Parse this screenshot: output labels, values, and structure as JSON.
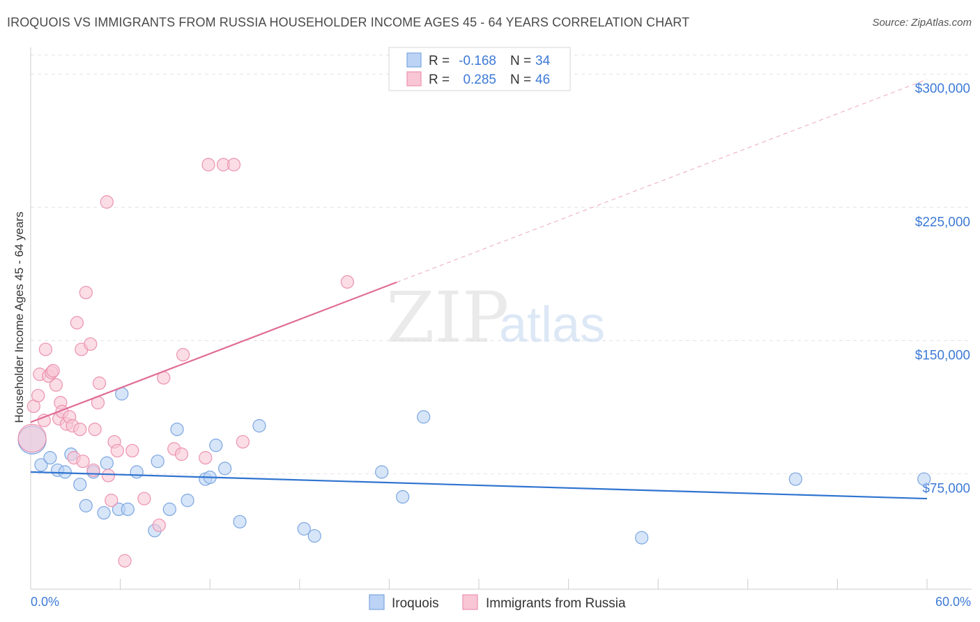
{
  "title": "IROQUOIS VS IMMIGRANTS FROM RUSSIA HOUSEHOLDER INCOME AGES 45 - 64 YEARS CORRELATION CHART",
  "source": "Source: ZipAtlas.com",
  "watermark": {
    "zip": "ZIP",
    "atlas": "atlas"
  },
  "colors": {
    "blue_fill": "#bcd3f5",
    "blue_stroke": "#7aa6e0",
    "blue_line": "#2f74d0",
    "pink_fill": "#f9c6d6",
    "pink_stroke": "#ec92af",
    "pink_line": "#e06b95",
    "axis_label": "#3d7ad6",
    "grid": "#e3e3e3"
  },
  "legend": {
    "items": [
      {
        "r_label": "R =",
        "r_value": "-0.168",
        "n_label": "N =",
        "n_value": "34"
      },
      {
        "r_label": "R =",
        "r_value": "0.285",
        "n_label": "N =",
        "n_value": "46"
      }
    ]
  },
  "chart_data": {
    "type": "scatter",
    "title": "IROQUOIS VS IMMIGRANTS FROM RUSSIA HOUSEHOLDER INCOME AGES 45 - 64 YEARS CORRELATION CHART",
    "xlabel": "",
    "ylabel": "Householder Income Ages 45 - 64 years",
    "xlim": [
      0,
      60
    ],
    "ylim": [
      10000,
      315000
    ],
    "x_tick_labels": [
      "0.0%",
      "60.0%"
    ],
    "y_ticks": [
      75000,
      150000,
      225000,
      300000
    ],
    "y_tick_labels": [
      "$75,000",
      "$150,000",
      "$225,000",
      "$300,000"
    ],
    "bottom_legend": [
      "Iroquois",
      "Immigrants from Russia"
    ],
    "series": [
      {
        "name": "Iroquois",
        "r": -0.168,
        "n": 34,
        "trend": {
          "x0": 0,
          "y0": 76000,
          "x1": 60,
          "y1": 61000,
          "solid_to": 60
        },
        "points": [
          {
            "x": 0.1,
            "y": 94000,
            "big": true
          },
          {
            "x": 0.7,
            "y": 80000
          },
          {
            "x": 1.3,
            "y": 84000
          },
          {
            "x": 1.8,
            "y": 77000
          },
          {
            "x": 2.3,
            "y": 76000
          },
          {
            "x": 2.7,
            "y": 86000
          },
          {
            "x": 3.3,
            "y": 69000
          },
          {
            "x": 3.7,
            "y": 57000
          },
          {
            "x": 4.2,
            "y": 76000
          },
          {
            "x": 4.9,
            "y": 53000
          },
          {
            "x": 5.1,
            "y": 81000
          },
          {
            "x": 5.9,
            "y": 55000
          },
          {
            "x": 6.1,
            "y": 120000
          },
          {
            "x": 6.5,
            "y": 55000
          },
          {
            "x": 7.1,
            "y": 76000
          },
          {
            "x": 8.3,
            "y": 43000
          },
          {
            "x": 8.5,
            "y": 82000
          },
          {
            "x": 9.3,
            "y": 55000
          },
          {
            "x": 9.8,
            "y": 100000
          },
          {
            "x": 10.5,
            "y": 60000
          },
          {
            "x": 11.7,
            "y": 72000
          },
          {
            "x": 12.0,
            "y": 73000
          },
          {
            "x": 12.4,
            "y": 91000
          },
          {
            "x": 13.0,
            "y": 78000
          },
          {
            "x": 14.0,
            "y": 48000
          },
          {
            "x": 15.3,
            "y": 102000
          },
          {
            "x": 18.3,
            "y": 44000
          },
          {
            "x": 19.0,
            "y": 40000
          },
          {
            "x": 23.5,
            "y": 76000
          },
          {
            "x": 24.9,
            "y": 62000
          },
          {
            "x": 26.3,
            "y": 107000
          },
          {
            "x": 40.9,
            "y": 39000
          },
          {
            "x": 51.2,
            "y": 72000
          },
          {
            "x": 59.8,
            "y": 72000
          }
        ]
      },
      {
        "name": "Immigrants from Russia",
        "r": 0.285,
        "n": 46,
        "trend": {
          "x0": 0,
          "y0": 104000,
          "x1": 60,
          "y1": 297000,
          "solid_to": 24.5
        },
        "points": [
          {
            "x": 0.1,
            "y": 95000,
            "big": true
          },
          {
            "x": 0.2,
            "y": 113000
          },
          {
            "x": 0.5,
            "y": 119000
          },
          {
            "x": 0.6,
            "y": 131000
          },
          {
            "x": 0.9,
            "y": 105000
          },
          {
            "x": 1.0,
            "y": 145000
          },
          {
            "x": 1.2,
            "y": 130000
          },
          {
            "x": 1.4,
            "y": 132000
          },
          {
            "x": 1.5,
            "y": 133000
          },
          {
            "x": 1.7,
            "y": 125000
          },
          {
            "x": 1.9,
            "y": 106000
          },
          {
            "x": 2.0,
            "y": 115000
          },
          {
            "x": 2.1,
            "y": 110000
          },
          {
            "x": 2.4,
            "y": 103000
          },
          {
            "x": 2.6,
            "y": 107000
          },
          {
            "x": 2.8,
            "y": 102000
          },
          {
            "x": 2.9,
            "y": 84000
          },
          {
            "x": 3.1,
            "y": 160000
          },
          {
            "x": 3.3,
            "y": 100000
          },
          {
            "x": 3.5,
            "y": 82000
          },
          {
            "x": 3.4,
            "y": 145000
          },
          {
            "x": 3.7,
            "y": 177000
          },
          {
            "x": 4.0,
            "y": 148000
          },
          {
            "x": 4.2,
            "y": 77000
          },
          {
            "x": 4.3,
            "y": 100000
          },
          {
            "x": 4.5,
            "y": 115000
          },
          {
            "x": 4.6,
            "y": 126000
          },
          {
            "x": 5.1,
            "y": 228000
          },
          {
            "x": 5.2,
            "y": 74000
          },
          {
            "x": 5.4,
            "y": 60000
          },
          {
            "x": 5.6,
            "y": 93000
          },
          {
            "x": 5.8,
            "y": 88000
          },
          {
            "x": 6.3,
            "y": 26000
          },
          {
            "x": 6.8,
            "y": 88000
          },
          {
            "x": 7.6,
            "y": 61000
          },
          {
            "x": 8.6,
            "y": 46000
          },
          {
            "x": 8.9,
            "y": 129000
          },
          {
            "x": 9.6,
            "y": 89000
          },
          {
            "x": 10.1,
            "y": 86000
          },
          {
            "x": 10.2,
            "y": 142000
          },
          {
            "x": 11.7,
            "y": 84000
          },
          {
            "x": 11.9,
            "y": 249000
          },
          {
            "x": 12.9,
            "y": 249000
          },
          {
            "x": 13.6,
            "y": 249000
          },
          {
            "x": 14.2,
            "y": 93000
          },
          {
            "x": 21.2,
            "y": 183000
          }
        ]
      }
    ]
  }
}
